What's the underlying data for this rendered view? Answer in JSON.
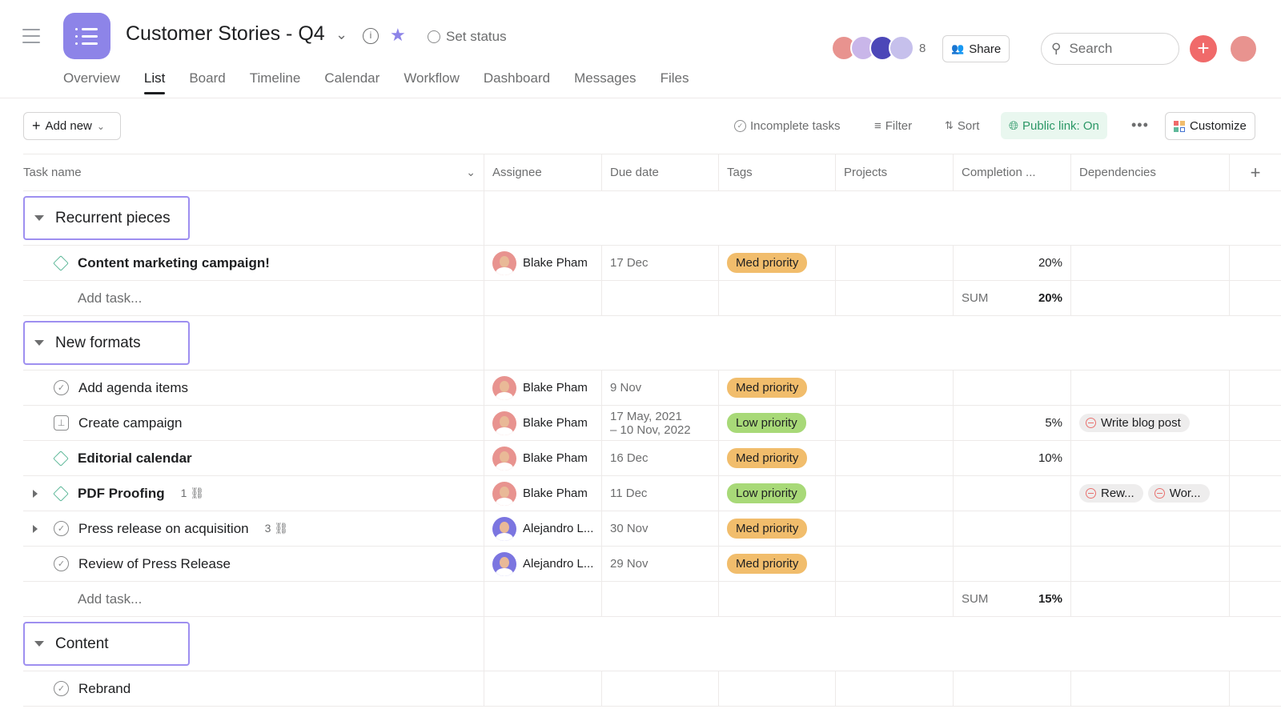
{
  "header": {
    "title": "Customer Stories - Q4",
    "set_status": "Set status",
    "member_count": "8",
    "share": "Share",
    "search_placeholder": "Search"
  },
  "tabs": [
    {
      "label": "Overview"
    },
    {
      "label": "List",
      "active": true
    },
    {
      "label": "Board"
    },
    {
      "label": "Timeline"
    },
    {
      "label": "Calendar"
    },
    {
      "label": "Workflow"
    },
    {
      "label": "Dashboard"
    },
    {
      "label": "Messages"
    },
    {
      "label": "Files"
    }
  ],
  "toolbar": {
    "add_new": "Add new",
    "incomplete": "Incomplete tasks",
    "filter": "Filter",
    "sort": "Sort",
    "public_link": "Public link: On",
    "customize": "Customize"
  },
  "columns": [
    "Task name",
    "Assignee",
    "Due date",
    "Tags",
    "Projects",
    "Completion ...",
    "Dependencies"
  ],
  "colors": {
    "brand": "#8d84e8",
    "med_priority": "#f1bd6c",
    "low_priority": "#a8d978",
    "add": "#f06a6a",
    "public_link": "#2b9766"
  },
  "sections": [
    {
      "name": "Recurrent pieces",
      "tasks": [
        {
          "name": "Content marketing campaign!",
          "icon": "milestone",
          "bold": true,
          "assignee": "Blake Pham",
          "due": "17 Dec",
          "tag": "Med priority",
          "completion": "20%"
        }
      ],
      "add_task": "Add task...",
      "sum_label": "SUM",
      "sum": "20%"
    },
    {
      "name": "New formats",
      "tasks": [
        {
          "name": "Add agenda items",
          "icon": "check",
          "assignee": "Blake Pham",
          "due": "9 Nov",
          "tag": "Med priority"
        },
        {
          "name": "Create campaign",
          "icon": "approval",
          "assignee": "Blake Pham",
          "due": "17 May, 2021",
          "due2": "– 10 Nov, 2022",
          "tag": "Low priority",
          "completion": "5%",
          "deps": [
            "Write blog post"
          ]
        },
        {
          "name": "Editorial calendar",
          "icon": "milestone",
          "bold": true,
          "assignee": "Blake Pham",
          "due": "16 Dec",
          "tag": "Med priority",
          "completion": "10%"
        },
        {
          "name": "PDF Proofing",
          "icon": "milestone",
          "bold": true,
          "expand": true,
          "subtasks": "1",
          "assignee": "Blake Pham",
          "due": "11 Dec",
          "tag": "Low priority",
          "deps": [
            "Rew...",
            "Wor..."
          ]
        },
        {
          "name": "Press release on acquisition",
          "icon": "check",
          "expand": true,
          "subtasks": "3",
          "assignee": "Alejandro L...",
          "due": "30 Nov",
          "tag": "Med priority"
        },
        {
          "name": "Review of Press Release",
          "icon": "check",
          "assignee": "Alejandro L...",
          "due": "29 Nov",
          "tag": "Med priority"
        }
      ],
      "add_task": "Add task...",
      "sum_label": "SUM",
      "sum": "15%"
    },
    {
      "name": "Content",
      "tasks": [
        {
          "name": "Rebrand",
          "icon": "check"
        }
      ]
    }
  ]
}
